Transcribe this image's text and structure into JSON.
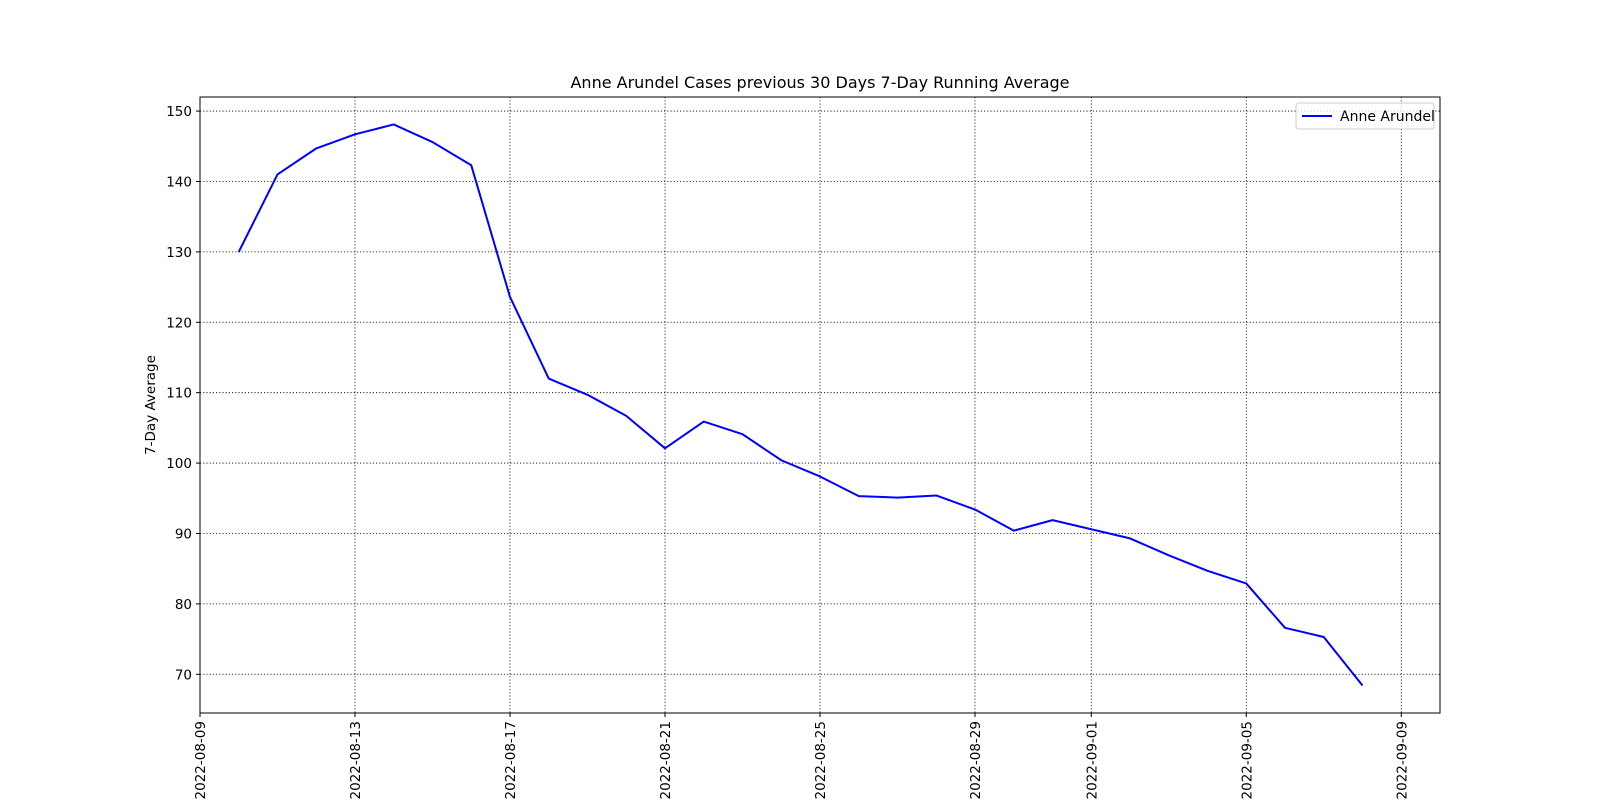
{
  "chart_data": {
    "type": "line",
    "title": "Anne Arundel Cases previous 30 Days 7-Day Running Average",
    "xlabel": "",
    "ylabel": "7-Day Average",
    "xlim": [
      "2022-08-09",
      "2022-09-10"
    ],
    "ylim": [
      64.5,
      152
    ],
    "grid": true,
    "grid_style": "dotted",
    "legend_position": "upper right",
    "x_ticks": [
      "2022-08-09",
      "2022-08-13",
      "2022-08-17",
      "2022-08-21",
      "2022-08-25",
      "2022-08-29",
      "2022-09-01",
      "2022-09-05",
      "2022-09-09"
    ],
    "y_ticks": [
      70,
      80,
      90,
      100,
      110,
      120,
      130,
      140,
      150
    ],
    "series": [
      {
        "name": "Anne Arundel",
        "color": "#0000ff",
        "x": [
          "2022-08-10",
          "2022-08-11",
          "2022-08-12",
          "2022-08-13",
          "2022-08-14",
          "2022-08-15",
          "2022-08-16",
          "2022-08-17",
          "2022-08-18",
          "2022-08-19",
          "2022-08-20",
          "2022-08-21",
          "2022-08-22",
          "2022-08-23",
          "2022-08-24",
          "2022-08-25",
          "2022-08-26",
          "2022-08-27",
          "2022-08-28",
          "2022-08-29",
          "2022-08-30",
          "2022-08-31",
          "2022-09-01",
          "2022-09-02",
          "2022-09-03",
          "2022-09-04",
          "2022-09-05",
          "2022-09-06",
          "2022-09-07",
          "2022-09-08"
        ],
        "values": [
          130.0,
          141.0,
          144.7,
          146.7,
          148.1,
          145.6,
          142.3,
          123.6,
          112.0,
          109.7,
          106.7,
          102.1,
          105.9,
          104.1,
          100.4,
          98.1,
          95.3,
          95.1,
          95.4,
          93.4,
          90.4,
          91.9,
          90.6,
          89.3,
          86.9,
          84.7,
          82.9,
          76.6,
          75.3,
          68.4
        ]
      }
    ]
  }
}
